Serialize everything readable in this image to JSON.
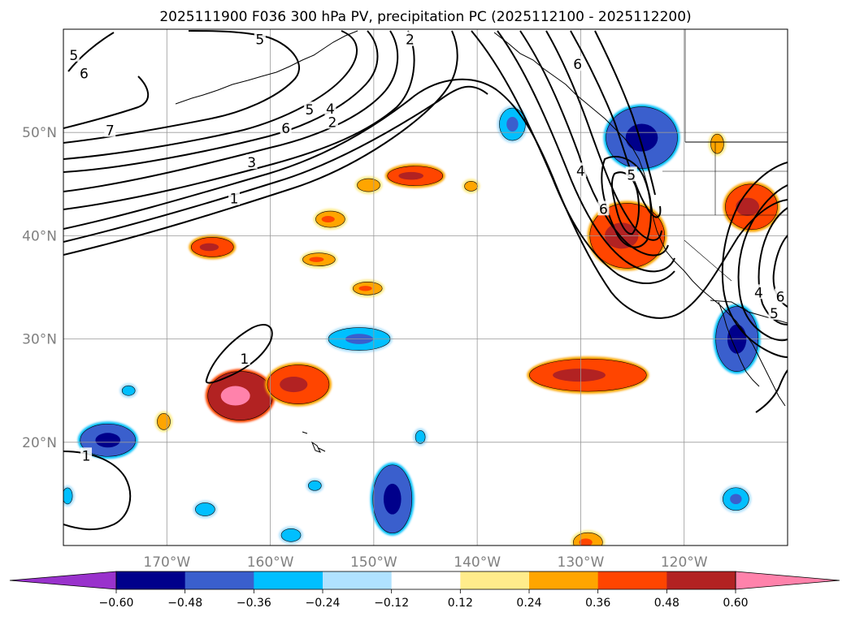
{
  "chart_data": {
    "type": "map",
    "title": "2025111900 F036 300 hPa PV, precipitation PC (2025112100 - 2025112200)",
    "projection": "PlateCarree",
    "extent": {
      "lon": [
        -180,
        -110
      ],
      "lat": [
        10,
        60
      ]
    },
    "gridlines": true,
    "lon_ticks": [
      {
        "value": -170,
        "label": "170°W"
      },
      {
        "value": -160,
        "label": "160°W"
      },
      {
        "value": -150,
        "label": "150°W"
      },
      {
        "value": -140,
        "label": "140°W"
      },
      {
        "value": -130,
        "label": "130°W"
      },
      {
        "value": -120,
        "label": "120°W"
      }
    ],
    "lat_ticks": [
      {
        "value": 50,
        "label": "50°N"
      },
      {
        "value": 40,
        "label": "40°N"
      },
      {
        "value": 30,
        "label": "30°N"
      },
      {
        "value": 20,
        "label": "20°N"
      }
    ],
    "pv_contours": {
      "units": "PVU",
      "levels": [
        1,
        2,
        3,
        4,
        5,
        6,
        7
      ],
      "labels": [
        {
          "text": "6",
          "lon": -178,
          "lat": 55.7
        },
        {
          "text": "5",
          "lon": -179,
          "lat": 57.5
        },
        {
          "text": "5",
          "lon": -161,
          "lat": 59
        },
        {
          "text": "2",
          "lon": -146.5,
          "lat": 59
        },
        {
          "text": "7",
          "lon": -175.5,
          "lat": 50.2
        },
        {
          "text": "6",
          "lon": -158.5,
          "lat": 50.4
        },
        {
          "text": "5",
          "lon": -156.2,
          "lat": 52.2
        },
        {
          "text": "4",
          "lon": -154.2,
          "lat": 52.3
        },
        {
          "text": "2",
          "lon": -154,
          "lat": 51
        },
        {
          "text": "3",
          "lon": -161.8,
          "lat": 47.1
        },
        {
          "text": "1",
          "lon": -163.5,
          "lat": 43.6
        },
        {
          "text": "4",
          "lon": -130,
          "lat": 46.3
        },
        {
          "text": "6",
          "lon": -127.8,
          "lat": 42.6
        },
        {
          "text": "5",
          "lon": -125.1,
          "lat": 45.9
        },
        {
          "text": "6",
          "lon": -130.3,
          "lat": 56.6
        },
        {
          "text": "4",
          "lon": -112.8,
          "lat": 34.5
        },
        {
          "text": "6",
          "lon": -110.7,
          "lat": 34.1
        },
        {
          "text": "5",
          "lon": -111.3,
          "lat": 32.5
        },
        {
          "text": "1",
          "lon": -162.5,
          "lat": 28.1
        },
        {
          "text": "1",
          "lon": -177.8,
          "lat": 18.7
        }
      ]
    },
    "precipitation_pc": {
      "colorbar": {
        "levels": [
          -0.6,
          -0.48,
          -0.36,
          -0.24,
          -0.12,
          0.12,
          0.24,
          0.36,
          0.48,
          0.6
        ],
        "tick_labels": [
          "−0.60",
          "−0.48",
          "−0.36",
          "−0.24",
          "−0.12",
          "0.12",
          "0.24",
          "0.36",
          "0.48",
          "0.60"
        ],
        "colors": [
          "#9932CC",
          "#00008B",
          "#3A5FCD",
          "#00BFFF",
          "#B0E2FF",
          "#FFFFFF",
          "#FFEC8B",
          "#FFA500",
          "#FF4500",
          "#B22222",
          "#FF82AB"
        ],
        "extend": "both"
      },
      "positive_regions": [
        {
          "lon": -165.6,
          "lat": 38.9,
          "max": 0.48
        },
        {
          "lon": -162.9,
          "lat": 24.5,
          "max": 0.6
        },
        {
          "lon": -157.3,
          "lat": 25.6,
          "max": 0.48
        },
        {
          "lon": -154.2,
          "lat": 41.6,
          "max": 0.36
        },
        {
          "lon": -155.3,
          "lat": 37.7,
          "max": 0.36
        },
        {
          "lon": -150.6,
          "lat": 34.9,
          "max": 0.36
        },
        {
          "lon": -146,
          "lat": 45.8,
          "max": 0.48
        },
        {
          "lon": -150.5,
          "lat": 44.9,
          "max": 0.36
        },
        {
          "lon": -140.6,
          "lat": 44.8,
          "max": 0.36
        },
        {
          "lon": -129.3,
          "lat": 26.5,
          "max": 0.48
        },
        {
          "lon": -125.5,
          "lat": 40,
          "max": 0.48
        },
        {
          "lon": -113.5,
          "lat": 42.8,
          "max": 0.48
        },
        {
          "lon": -116.8,
          "lat": 48.9,
          "max": 0.36
        },
        {
          "lon": -170.3,
          "lat": 22,
          "max": 0.36
        },
        {
          "lon": -129.3,
          "lat": 10.3,
          "max": 0.36
        }
      ],
      "negative_regions": [
        {
          "lon": -175.7,
          "lat": 20.2,
          "max_abs": 0.6
        },
        {
          "lon": -151.4,
          "lat": 30,
          "max_abs": 0.36
        },
        {
          "lon": -148.2,
          "lat": 14.5,
          "max_abs": 0.6
        },
        {
          "lon": -124.1,
          "lat": 49.5,
          "max_abs": 0.6
        },
        {
          "lon": -136.6,
          "lat": 50.8,
          "max_abs": 0.36
        },
        {
          "lon": -114.9,
          "lat": 30,
          "max_abs": 0.6
        },
        {
          "lon": -173.7,
          "lat": 25,
          "max_abs": 0.24
        },
        {
          "lon": -145.5,
          "lat": 20.5,
          "max_abs": 0.24
        },
        {
          "lon": -166.3,
          "lat": 13.5,
          "max_abs": 0.24
        },
        {
          "lon": -115,
          "lat": 14.5,
          "max_abs": 0.36
        },
        {
          "lon": -179.6,
          "lat": 14.8,
          "max_abs": 0.24
        },
        {
          "lon": -158,
          "lat": 11,
          "max_abs": 0.24
        },
        {
          "lon": -155.7,
          "lat": 15.8,
          "max_abs": 0.24
        }
      ]
    }
  }
}
